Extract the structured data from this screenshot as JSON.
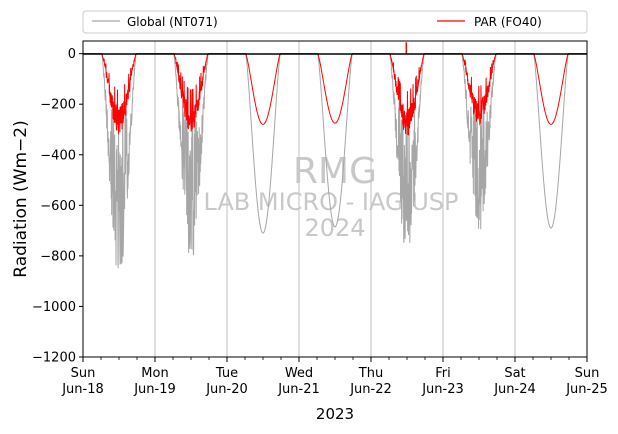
{
  "chart_data": {
    "type": "line",
    "xlabel": "2023",
    "ylabel": "Radiation (Wm−2)",
    "ylim": [
      -1200,
      50
    ],
    "yticks": [
      0,
      -200,
      -400,
      -600,
      -800,
      -1000,
      -1200
    ],
    "ytick_labels": [
      "0",
      "−200",
      "−400",
      "−600",
      "−800",
      "−1000",
      "−1200"
    ],
    "xlim": [
      0,
      7
    ],
    "xticks": [
      0,
      1,
      2,
      3,
      4,
      5,
      6,
      7
    ],
    "xtick_labels": [
      [
        "Sun",
        "Jun-18"
      ],
      [
        "Mon",
        "Jun-19"
      ],
      [
        "Tue",
        "Jun-20"
      ],
      [
        "Wed",
        "Jun-21"
      ],
      [
        "Thu",
        "Jun-22"
      ],
      [
        "Fri",
        "Jun-23"
      ],
      [
        "Sat",
        "Jun-24"
      ],
      [
        "Sun",
        "Jun-25"
      ]
    ],
    "grid": "vertical",
    "legend": {
      "position": "top",
      "entries": [
        {
          "label": "Global (NT071)",
          "color": "#a6a6a6"
        },
        {
          "label": "PAR (FO40)",
          "color": "#ff0000"
        }
      ]
    },
    "watermark": [
      "RMG",
      "LAB MICRO - IAG USP",
      "2024"
    ],
    "days": [
      {
        "day": "Jun-18",
        "global_peak": -885,
        "par_peak": -320,
        "cloudy": true
      },
      {
        "day": "Jun-19",
        "global_peak": -825,
        "par_peak": -315,
        "cloudy": true
      },
      {
        "day": "Jun-20",
        "global_peak": -710,
        "par_peak": -280,
        "cloudy": false
      },
      {
        "day": "Jun-21",
        "global_peak": -685,
        "par_peak": -275,
        "cloudy": false
      },
      {
        "day": "Jun-22",
        "global_peak": -800,
        "par_peak": -330,
        "cloudy": true
      },
      {
        "day": "Jun-23",
        "global_peak": -710,
        "par_peak": -285,
        "cloudy": true
      },
      {
        "day": "Jun-24",
        "global_peak": -690,
        "par_peak": -280,
        "cloudy": false
      }
    ],
    "series": [
      {
        "name": "Global (NT071)",
        "color": "#a6a6a6",
        "peak_values": [
          -885,
          -825,
          -710,
          -685,
          -800,
          -710,
          -690
        ]
      },
      {
        "name": "PAR (FO40)",
        "color": "#ff0000",
        "peak_values": [
          -320,
          -315,
          -280,
          -275,
          -330,
          -285,
          -280
        ]
      }
    ],
    "par_spike": {
      "x": 4.49,
      "value": 45
    }
  }
}
